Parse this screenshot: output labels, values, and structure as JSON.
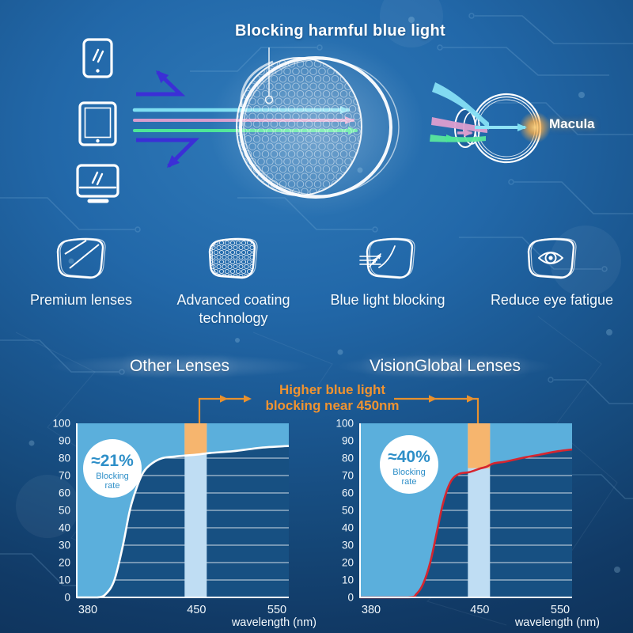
{
  "colors": {
    "accent_orange": "#EE912E",
    "band_orange": "#F6B56E",
    "band_blue": "#BFDDF3",
    "fill_blue": "#5BAFDC",
    "plot_bg": "#175082",
    "grid_line": "#FFFFFF",
    "axis_text": "#F2F8FC",
    "badge_text": "#2E8FC8",
    "curve_red": "#D6252F",
    "curve_white": "#FFFFFF",
    "ray_cyan": "#7EDFF2",
    "ray_pink": "#D89CCD",
    "ray_green": "#4CE697",
    "ray_reflect": "#3B2FD6",
    "macula_glow": "#FFAF45"
  },
  "hero": {
    "title": "Blocking harmful blue light",
    "macula_label": "Macula",
    "device_icons": [
      "smartphone-icon",
      "tablet-icon",
      "monitor-icon"
    ]
  },
  "features": [
    {
      "icon": "premium-lens-icon",
      "label": "Premium lenses"
    },
    {
      "icon": "coating-lens-icon",
      "label": "Advanced coating technology"
    },
    {
      "icon": "blue-light-blocking-icon",
      "label": "Blue light blocking"
    },
    {
      "icon": "reduce-eye-fatigue-icon",
      "label": "Reduce eye fatigue"
    }
  ],
  "comparison": {
    "annotation_line1": "Higher blue light",
    "annotation_line2": "blocking near 450nm"
  },
  "chart_data": [
    {
      "type": "area",
      "title": "Other Lenses",
      "xlabel": "wavelength (nm)",
      "x_ticks": [
        380,
        450,
        550
      ],
      "y_ticks": [
        0,
        10,
        20,
        30,
        40,
        50,
        60,
        70,
        80,
        90,
        100
      ],
      "xlim": [
        380,
        550
      ],
      "ylim": [
        0,
        100
      ],
      "grid": true,
      "legend": "none",
      "curve_color": "#FFFFFF",
      "highlight_band_nm": [
        443,
        461
      ],
      "badge": {
        "value": "≈21%",
        "label": "Blocking rate"
      },
      "badge_center": [
        45,
        57
      ],
      "points": [
        [
          380,
          0
        ],
        [
          392,
          0
        ],
        [
          397,
          2
        ],
        [
          402,
          10
        ],
        [
          407,
          30
        ],
        [
          411,
          50
        ],
        [
          415,
          63
        ],
        [
          419,
          72
        ],
        [
          424,
          77
        ],
        [
          430,
          80
        ],
        [
          438,
          81
        ],
        [
          450,
          82
        ],
        [
          465,
          83
        ],
        [
          490,
          84
        ],
        [
          520,
          86
        ],
        [
          550,
          87
        ]
      ]
    },
    {
      "type": "area",
      "title": "VisionGlobal Lenses",
      "xlabel": "wavelength (nm)",
      "x_ticks": [
        380,
        450,
        550
      ],
      "y_ticks": [
        0,
        10,
        20,
        30,
        40,
        50,
        60,
        70,
        80,
        90,
        100
      ],
      "xlim": [
        380,
        550
      ],
      "ylim": [
        0,
        100
      ],
      "grid": true,
      "legend": "none",
      "curve_color": "#D6252F",
      "highlight_band_nm": [
        443,
        461
      ],
      "badge": {
        "value": "≈40%",
        "label": "Blocking rate"
      },
      "badge_center": [
        62,
        52
      ],
      "points": [
        [
          380,
          0
        ],
        [
          408,
          0
        ],
        [
          413,
          2
        ],
        [
          417,
          8
        ],
        [
          421,
          20
        ],
        [
          425,
          38
        ],
        [
          428,
          52
        ],
        [
          431,
          62
        ],
        [
          434,
          68
        ],
        [
          438,
          71
        ],
        [
          444,
          72
        ],
        [
          450,
          74
        ],
        [
          457,
          75
        ],
        [
          465,
          77
        ],
        [
          478,
          78
        ],
        [
          495,
          80
        ],
        [
          515,
          82
        ],
        [
          535,
          84
        ],
        [
          550,
          85
        ]
      ]
    }
  ]
}
